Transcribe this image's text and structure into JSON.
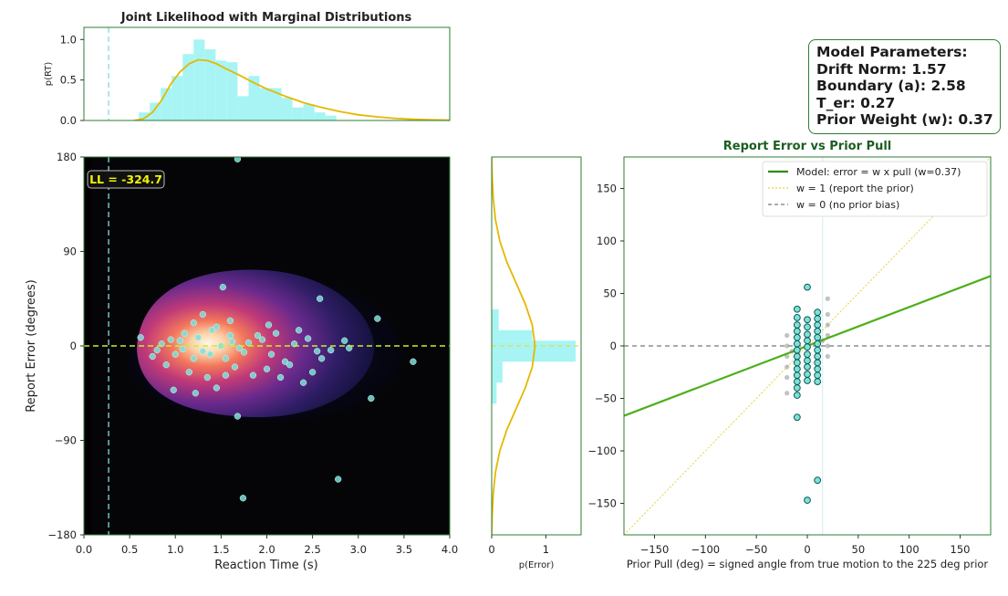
{
  "colors": {
    "accent_green": "#2e7d32",
    "hist_fill": "#a8f4f4",
    "curve": "#e6b800",
    "scatter_fill": "#7fe0d8",
    "scatter_edge": "#0a5a55",
    "grey_points": "#9a9a9a",
    "dark_bg": "#000000",
    "ll_text": "#f2f20a"
  },
  "params_box": {
    "title": "Model Parameters:",
    "lines": [
      "Drift Norm: 1.57",
      "Boundary (a): 2.58",
      "T_er: 0.27",
      "Prior Weight (w): 0.37"
    ]
  },
  "chart_data": [
    {
      "id": "rt-marginal",
      "type": "bar",
      "title": "Joint Likelihood with Marginal Distributions",
      "ylabel": "p(RT)",
      "xlim": [
        0.0,
        4.0
      ],
      "ylim": [
        0.0,
        1.15
      ],
      "yticks": [
        "0.0",
        "0.5",
        "1.0"
      ],
      "ytick_values": [
        0.0,
        0.5,
        1.0
      ],
      "bins": [
        {
          "x0": 0.6,
          "x1": 0.72,
          "v": 0.1
        },
        {
          "x0": 0.72,
          "x1": 0.84,
          "v": 0.22
        },
        {
          "x0": 0.84,
          "x1": 0.96,
          "v": 0.4
        },
        {
          "x0": 0.96,
          "x1": 1.08,
          "v": 0.55
        },
        {
          "x0": 1.08,
          "x1": 1.2,
          "v": 0.82
        },
        {
          "x0": 1.2,
          "x1": 1.32,
          "v": 1.0
        },
        {
          "x0": 1.32,
          "x1": 1.44,
          "v": 0.88
        },
        {
          "x0": 1.44,
          "x1": 1.56,
          "v": 0.74
        },
        {
          "x0": 1.56,
          "x1": 1.68,
          "v": 0.72
        },
        {
          "x0": 1.68,
          "x1": 1.8,
          "v": 0.3
        },
        {
          "x0": 1.8,
          "x1": 1.92,
          "v": 0.55
        },
        {
          "x0": 1.92,
          "x1": 2.04,
          "v": 0.4
        },
        {
          "x0": 2.04,
          "x1": 2.16,
          "v": 0.4
        },
        {
          "x0": 2.16,
          "x1": 2.28,
          "v": 0.28
        },
        {
          "x0": 2.28,
          "x1": 2.4,
          "v": 0.16
        },
        {
          "x0": 2.4,
          "x1": 2.52,
          "v": 0.2
        },
        {
          "x0": 2.52,
          "x1": 2.64,
          "v": 0.1
        },
        {
          "x0": 2.64,
          "x1": 2.76,
          "v": 0.06
        }
      ],
      "curve": [
        [
          0.55,
          0.0
        ],
        [
          0.65,
          0.02
        ],
        [
          0.75,
          0.1
        ],
        [
          0.85,
          0.25
        ],
        [
          0.95,
          0.45
        ],
        [
          1.05,
          0.6
        ],
        [
          1.15,
          0.7
        ],
        [
          1.25,
          0.75
        ],
        [
          1.35,
          0.74
        ],
        [
          1.45,
          0.7
        ],
        [
          1.55,
          0.64
        ],
        [
          1.7,
          0.56
        ],
        [
          1.85,
          0.47
        ],
        [
          2.0,
          0.39
        ],
        [
          2.2,
          0.3
        ],
        [
          2.4,
          0.22
        ],
        [
          2.6,
          0.16
        ],
        [
          2.8,
          0.11
        ],
        [
          3.0,
          0.07
        ],
        [
          3.2,
          0.045
        ],
        [
          3.4,
          0.027
        ],
        [
          3.6,
          0.015
        ],
        [
          3.8,
          0.008
        ],
        [
          4.0,
          0.004
        ]
      ],
      "ter_line": 0.27
    },
    {
      "id": "joint",
      "type": "scatter",
      "xlabel": "Reaction Time (s)",
      "ylabel": "Report Error (degrees)",
      "xlim": [
        0.0,
        4.0
      ],
      "ylim": [
        -180,
        180
      ],
      "xticks": [
        "0.0",
        "0.5",
        "1.0",
        "1.5",
        "2.0",
        "2.5",
        "3.0",
        "3.5",
        "4.0"
      ],
      "xtick_values": [
        0.0,
        0.5,
        1.0,
        1.5,
        2.0,
        2.5,
        3.0,
        3.5,
        4.0
      ],
      "yticks": [
        "180",
        "90",
        "0",
        "−90",
        "−180"
      ],
      "ytick_values": [
        180,
        90,
        0,
        -90,
        -180
      ],
      "ll_label": "LL = -324.7",
      "ter_line": 0.27,
      "hline": 0,
      "points": [
        [
          1.68,
          178
        ],
        [
          1.52,
          56
        ],
        [
          2.58,
          45
        ],
        [
          3.21,
          26
        ],
        [
          1.6,
          24
        ],
        [
          1.2,
          22
        ],
        [
          2.02,
          20
        ],
        [
          2.35,
          15
        ],
        [
          0.62,
          8
        ],
        [
          0.95,
          6
        ],
        [
          3.6,
          -15
        ],
        [
          3.14,
          -50
        ],
        [
          1.68,
          -67
        ],
        [
          2.78,
          -127
        ],
        [
          1.74,
          -145
        ],
        [
          0.98,
          -42
        ],
        [
          1.45,
          -40
        ],
        [
          1.22,
          -45
        ],
        [
          2.15,
          -30
        ],
        [
          2.5,
          -25
        ],
        [
          0.75,
          -10
        ],
        [
          1.05,
          5
        ],
        [
          1.3,
          -5
        ],
        [
          1.55,
          -12
        ],
        [
          1.8,
          3
        ],
        [
          2.05,
          -8
        ],
        [
          2.3,
          2
        ],
        [
          2.7,
          -4
        ],
        [
          1.1,
          12
        ],
        [
          1.4,
          15
        ],
        [
          1.65,
          -20
        ],
        [
          1.9,
          10
        ],
        [
          1.15,
          -25
        ],
        [
          1.35,
          -30
        ],
        [
          2.2,
          -15
        ],
        [
          2.45,
          7
        ],
        [
          0.9,
          -18
        ],
        [
          1.25,
          8
        ],
        [
          1.5,
          0
        ],
        [
          1.75,
          -6
        ],
        [
          2.0,
          -22
        ],
        [
          2.6,
          -12
        ],
        [
          2.85,
          5
        ],
        [
          1.0,
          -8
        ],
        [
          1.6,
          10
        ],
        [
          1.85,
          -28
        ],
        [
          2.1,
          12
        ],
        [
          2.4,
          -35
        ],
        [
          1.2,
          -12
        ],
        [
          1.45,
          18
        ],
        [
          0.85,
          2
        ],
        [
          1.7,
          -2
        ],
        [
          1.95,
          6
        ],
        [
          2.25,
          -18
        ],
        [
          2.55,
          -5
        ],
        [
          1.3,
          30
        ],
        [
          1.55,
          -28
        ],
        [
          1.08,
          -3
        ],
        [
          1.38,
          -8
        ],
        [
          1.62,
          4
        ],
        [
          0.8,
          -4
        ],
        [
          2.9,
          -2
        ]
      ]
    },
    {
      "id": "error-marginal",
      "type": "bar",
      "xlabel": "p(Error)",
      "xlim": [
        0,
        1.65
      ],
      "ylim": [
        -180,
        180
      ],
      "xticks": [
        "0",
        "1"
      ],
      "xtick_values": [
        0,
        1
      ],
      "bins": [
        {
          "y0": -55,
          "y1": -35,
          "v": 0.09
        },
        {
          "y0": -35,
          "y1": -15,
          "v": 0.2
        },
        {
          "y0": -15,
          "y1": 5,
          "v": 1.55
        },
        {
          "y0": 5,
          "y1": 15,
          "v": 0.75
        },
        {
          "y0": 15,
          "y1": 35,
          "v": 0.13
        }
      ],
      "curve": [
        [
          -180,
          0
        ],
        [
          -160,
          0.01
        ],
        [
          -140,
          0.03
        ],
        [
          -120,
          0.07
        ],
        [
          -100,
          0.15
        ],
        [
          -80,
          0.28
        ],
        [
          -60,
          0.45
        ],
        [
          -40,
          0.62
        ],
        [
          -20,
          0.75
        ],
        [
          0,
          0.8
        ],
        [
          20,
          0.75
        ],
        [
          40,
          0.62
        ],
        [
          60,
          0.45
        ],
        [
          80,
          0.28
        ],
        [
          100,
          0.15
        ],
        [
          120,
          0.07
        ],
        [
          140,
          0.03
        ],
        [
          160,
          0.01
        ],
        [
          180,
          0
        ]
      ]
    },
    {
      "id": "prior-pull",
      "type": "scatter",
      "title": "Report Error vs Prior Pull",
      "xlabel": "Prior Pull (deg) = signed angle from true motion to the 225 deg prior",
      "xlim": [
        -180,
        180
      ],
      "ylim": [
        -180,
        180
      ],
      "xticks": [
        "−150",
        "−100",
        "−50",
        "0",
        "50",
        "100",
        "150"
      ],
      "xtick_values": [
        -150,
        -100,
        -50,
        0,
        50,
        100,
        150
      ],
      "yticks": [
        "150",
        "100",
        "50",
        "0",
        "−50",
        "−100",
        "−150"
      ],
      "ytick_values": [
        150,
        100,
        50,
        0,
        -50,
        -100,
        -150
      ],
      "legend_position": "top-right",
      "legend": [
        "Model: error = w x pull (w=0.37)",
        "w = 1 (report the prior)",
        "w = 0 (no prior bias)"
      ],
      "model_slope": 0.37,
      "points": [
        [
          -10,
          35
        ],
        [
          -10,
          27
        ],
        [
          -10,
          20
        ],
        [
          -10,
          14
        ],
        [
          -10,
          8
        ],
        [
          -10,
          2
        ],
        [
          -10,
          -4
        ],
        [
          -10,
          -10
        ],
        [
          -10,
          -16
        ],
        [
          -10,
          -22
        ],
        [
          -10,
          -28
        ],
        [
          -10,
          -34
        ],
        [
          -10,
          -40
        ],
        [
          -10,
          -47
        ],
        [
          -10,
          -68
        ],
        [
          0,
          56
        ],
        [
          0,
          25
        ],
        [
          0,
          18
        ],
        [
          0,
          11
        ],
        [
          0,
          5
        ],
        [
          0,
          -1
        ],
        [
          0,
          -8
        ],
        [
          0,
          -14
        ],
        [
          0,
          -20
        ],
        [
          0,
          -27
        ],
        [
          0,
          -33
        ],
        [
          0,
          -147
        ],
        [
          10,
          32
        ],
        [
          10,
          26
        ],
        [
          10,
          20
        ],
        [
          10,
          14
        ],
        [
          10,
          8
        ],
        [
          10,
          2
        ],
        [
          10,
          -4
        ],
        [
          10,
          -10
        ],
        [
          10,
          -16
        ],
        [
          10,
          -22
        ],
        [
          10,
          -28
        ],
        [
          10,
          -34
        ],
        [
          10,
          -128
        ]
      ],
      "grey_points": [
        [
          -20,
          -20
        ],
        [
          -20,
          -10
        ],
        [
          -20,
          0
        ],
        [
          -20,
          -30
        ],
        [
          -20,
          -45
        ],
        [
          -20,
          10
        ],
        [
          20,
          10
        ],
        [
          20,
          20
        ],
        [
          20,
          0
        ],
        [
          20,
          30
        ],
        [
          20,
          -10
        ],
        [
          20,
          45
        ],
        [
          -15,
          -5
        ],
        [
          15,
          5
        ]
      ]
    }
  ]
}
